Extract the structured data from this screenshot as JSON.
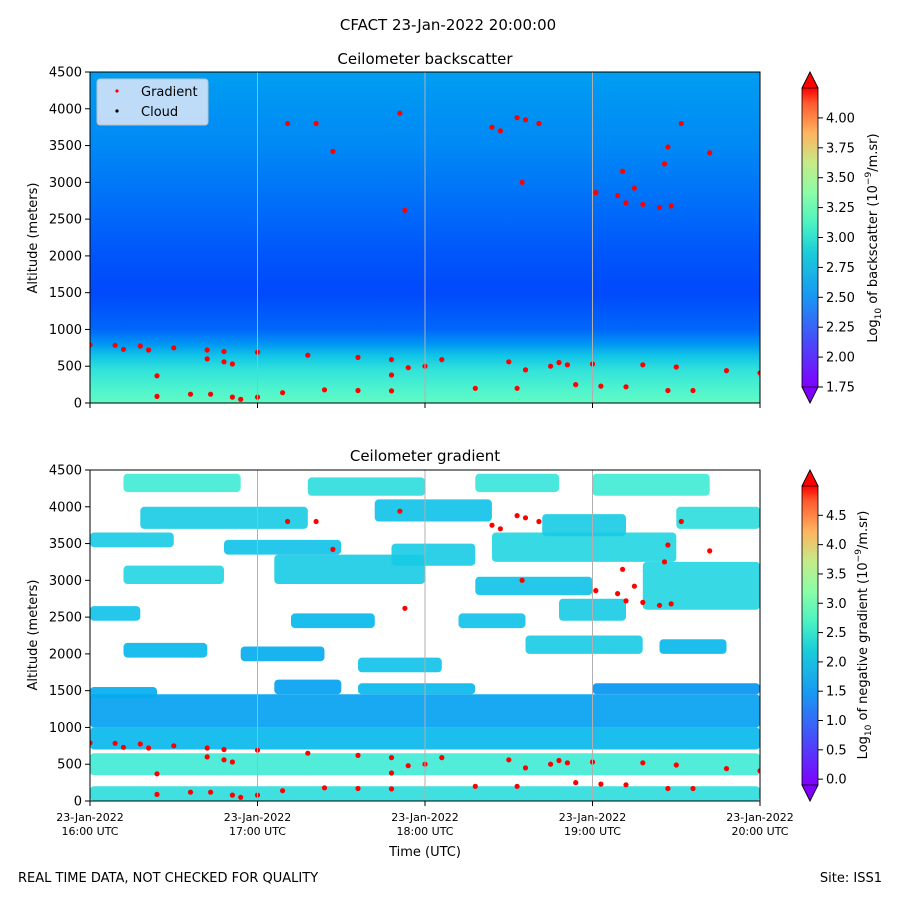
{
  "figure": {
    "suptitle": "CFACT 23-Jan-2022 20:00:00",
    "footer_left": "REAL TIME DATA, NOT CHECKED FOR QUALITY",
    "footer_right": "Site: ISS1"
  },
  "chart_data": [
    {
      "type": "heatmap",
      "title": "Ceilometer backscatter",
      "ylabel": "Altitude (meters)",
      "xlabel": "",
      "ylim": [
        0,
        4500
      ],
      "xlim": [
        "2022-01-23 16:00",
        "2022-01-23 20:00"
      ],
      "yticks": [
        "0",
        "500",
        "1000",
        "1500",
        "2000",
        "2500",
        "3000",
        "3500",
        "4000",
        "4500"
      ],
      "xticks": [
        [
          "23-Jan-2022",
          "16:00 UTC"
        ],
        [
          "23-Jan-2022",
          "17:00 UTC"
        ],
        [
          "23-Jan-2022",
          "18:00 UTC"
        ],
        [
          "23-Jan-2022",
          "19:00 UTC"
        ],
        [
          "23-Jan-2022",
          "20:00 UTC"
        ]
      ],
      "legend": {
        "entries": [
          "Gradient",
          "Cloud"
        ],
        "colors": [
          "#ff0000",
          "#000000"
        ],
        "placement": "upper-left"
      },
      "colorbar": {
        "label": "Log10 of backscatter (10^-9/m.sr)",
        "range": [
          1.75,
          4.25
        ],
        "ticks": [
          "1.75",
          "2.00",
          "2.25",
          "2.50",
          "2.75",
          "3.00",
          "3.25",
          "3.50",
          "3.75",
          "4.00"
        ],
        "colormap": "rainbow"
      },
      "field_profile": [
        [
          0,
          2.85
        ],
        [
          200,
          2.75
        ],
        [
          450,
          2.62
        ],
        [
          650,
          2.45
        ],
        [
          800,
          2.25
        ],
        [
          1000,
          2.08
        ],
        [
          1500,
          1.98
        ],
        [
          2000,
          2.02
        ],
        [
          2500,
          2.08
        ],
        [
          3000,
          2.14
        ],
        [
          3500,
          2.2
        ],
        [
          4000,
          2.24
        ],
        [
          4500,
          2.28
        ]
      ]
    },
    {
      "type": "heatmap",
      "title": "Ceilometer gradient",
      "ylabel": "Altitude (meters)",
      "xlabel": "Time (UTC)",
      "ylim": [
        0,
        4500
      ],
      "xlim": [
        "2022-01-23 16:00",
        "2022-01-23 20:00"
      ],
      "yticks": [
        "0",
        "500",
        "1000",
        "1500",
        "2000",
        "2500",
        "3000",
        "3500",
        "4000",
        "4500"
      ],
      "xticks": [
        [
          "23-Jan-2022",
          "16:00 UTC"
        ],
        [
          "23-Jan-2022",
          "17:00 UTC"
        ],
        [
          "23-Jan-2022",
          "18:00 UTC"
        ],
        [
          "23-Jan-2022",
          "19:00 UTC"
        ],
        [
          "23-Jan-2022",
          "20:00 UTC"
        ]
      ],
      "colorbar": {
        "label": "Log10 of negative gradient (10^-9/m.sr)",
        "range": [
          -0.1,
          5.0
        ],
        "ticks": [
          "0.0",
          "0.5",
          "1.0",
          "1.5",
          "2.0",
          "2.5",
          "3.0",
          "3.5",
          "4.0",
          "4.5"
        ],
        "colormap": "rainbow"
      },
      "cloud_bands": [
        [
          16.0,
          20.0,
          350,
          650,
          1.8
        ],
        [
          16.0,
          20.0,
          0,
          200,
          1.6
        ],
        [
          16.0,
          20.0,
          700,
          1000,
          1.2
        ],
        [
          16.0,
          20.0,
          1000,
          1450,
          1.0
        ],
        [
          16.0,
          16.4,
          1400,
          1550,
          1.1
        ],
        [
          17.1,
          17.5,
          1450,
          1650,
          1.0
        ],
        [
          17.6,
          18.3,
          1450,
          1600,
          1.2
        ],
        [
          19.0,
          20.0,
          1450,
          1600,
          0.9
        ],
        [
          16.2,
          16.7,
          1950,
          2150,
          1.2
        ],
        [
          16.9,
          17.4,
          1900,
          2100,
          1.1
        ],
        [
          17.6,
          18.1,
          1750,
          1950,
          1.3
        ],
        [
          18.6,
          19.3,
          2000,
          2250,
          1.4
        ],
        [
          19.4,
          19.8,
          2000,
          2200,
          1.2
        ],
        [
          16.0,
          16.3,
          2450,
          2650,
          1.3
        ],
        [
          17.2,
          17.7,
          2350,
          2550,
          1.2
        ],
        [
          18.2,
          18.6,
          2350,
          2550,
          1.3
        ],
        [
          18.8,
          19.2,
          2450,
          2750,
          1.4
        ],
        [
          16.2,
          16.8,
          2950,
          3200,
          1.5
        ],
        [
          17.1,
          18.0,
          2950,
          3350,
          1.4
        ],
        [
          18.3,
          19.0,
          2800,
          3050,
          1.3
        ],
        [
          19.3,
          20.0,
          2600,
          3250,
          1.5
        ],
        [
          16.0,
          16.5,
          3450,
          3650,
          1.4
        ],
        [
          16.8,
          17.5,
          3350,
          3550,
          1.3
        ],
        [
          17.8,
          18.3,
          3200,
          3500,
          1.4
        ],
        [
          18.4,
          19.5,
          3250,
          3650,
          1.5
        ],
        [
          16.3,
          17.3,
          3700,
          4000,
          1.4
        ],
        [
          17.7,
          18.4,
          3800,
          4100,
          1.3
        ],
        [
          18.7,
          19.2,
          3600,
          3900,
          1.4
        ],
        [
          19.5,
          20.0,
          3700,
          4000,
          1.6
        ],
        [
          16.2,
          16.9,
          4200,
          4450,
          1.8
        ],
        [
          17.3,
          18.0,
          4150,
          4400,
          1.6
        ],
        [
          18.3,
          18.8,
          4200,
          4450,
          1.7
        ],
        [
          19.0,
          19.7,
          4150,
          4450,
          1.8
        ]
      ]
    }
  ],
  "gradient_points": [
    [
      16.0,
      790
    ],
    [
      16.15,
      785
    ],
    [
      16.3,
      775
    ],
    [
      16.5,
      750
    ],
    [
      16.7,
      720
    ],
    [
      16.8,
      700
    ],
    [
      17.0,
      690
    ],
    [
      17.3,
      650
    ],
    [
      17.6,
      620
    ],
    [
      17.8,
      590
    ],
    [
      18.1,
      590
    ],
    [
      18.5,
      560
    ],
    [
      18.8,
      550
    ],
    [
      19.0,
      530
    ],
    [
      19.3,
      520
    ],
    [
      19.5,
      490
    ],
    [
      19.8,
      440
    ],
    [
      20.0,
      410
    ],
    [
      16.2,
      730
    ],
    [
      16.35,
      720
    ],
    [
      16.7,
      600
    ],
    [
      16.8,
      560
    ],
    [
      16.85,
      530
    ],
    [
      16.4,
      370
    ],
    [
      16.4,
      90
    ],
    [
      16.6,
      120
    ],
    [
      16.72,
      120
    ],
    [
      16.85,
      80
    ],
    [
      16.9,
      50
    ],
    [
      17.0,
      80
    ],
    [
      17.15,
      140
    ],
    [
      17.4,
      180
    ],
    [
      17.6,
      170
    ],
    [
      17.8,
      165
    ],
    [
      17.8,
      380
    ],
    [
      17.9,
      480
    ],
    [
      18.0,
      500
    ],
    [
      18.3,
      200
    ],
    [
      18.55,
      200
    ],
    [
      18.6,
      450
    ],
    [
      18.75,
      500
    ],
    [
      18.85,
      520
    ],
    [
      18.9,
      250
    ],
    [
      19.05,
      230
    ],
    [
      19.2,
      220
    ],
    [
      19.45,
      170
    ],
    [
      19.6,
      170
    ],
    [
      17.18,
      3800
    ],
    [
      17.35,
      3800
    ],
    [
      17.45,
      3420
    ],
    [
      17.85,
      3940
    ],
    [
      17.88,
      2620
    ],
    [
      18.4,
      3750
    ],
    [
      18.45,
      3700
    ],
    [
      18.55,
      3880
    ],
    [
      18.6,
      3850
    ],
    [
      18.68,
      3800
    ],
    [
      18.58,
      3000
    ],
    [
      19.02,
      2860
    ],
    [
      19.15,
      2820
    ],
    [
      19.18,
      3150
    ],
    [
      19.2,
      2720
    ],
    [
      19.25,
      2920
    ],
    [
      19.3,
      2700
    ],
    [
      19.4,
      2660
    ],
    [
      19.43,
      3250
    ],
    [
      19.45,
      3480
    ],
    [
      19.47,
      2680
    ],
    [
      19.53,
      3800
    ],
    [
      19.7,
      3400
    ]
  ]
}
